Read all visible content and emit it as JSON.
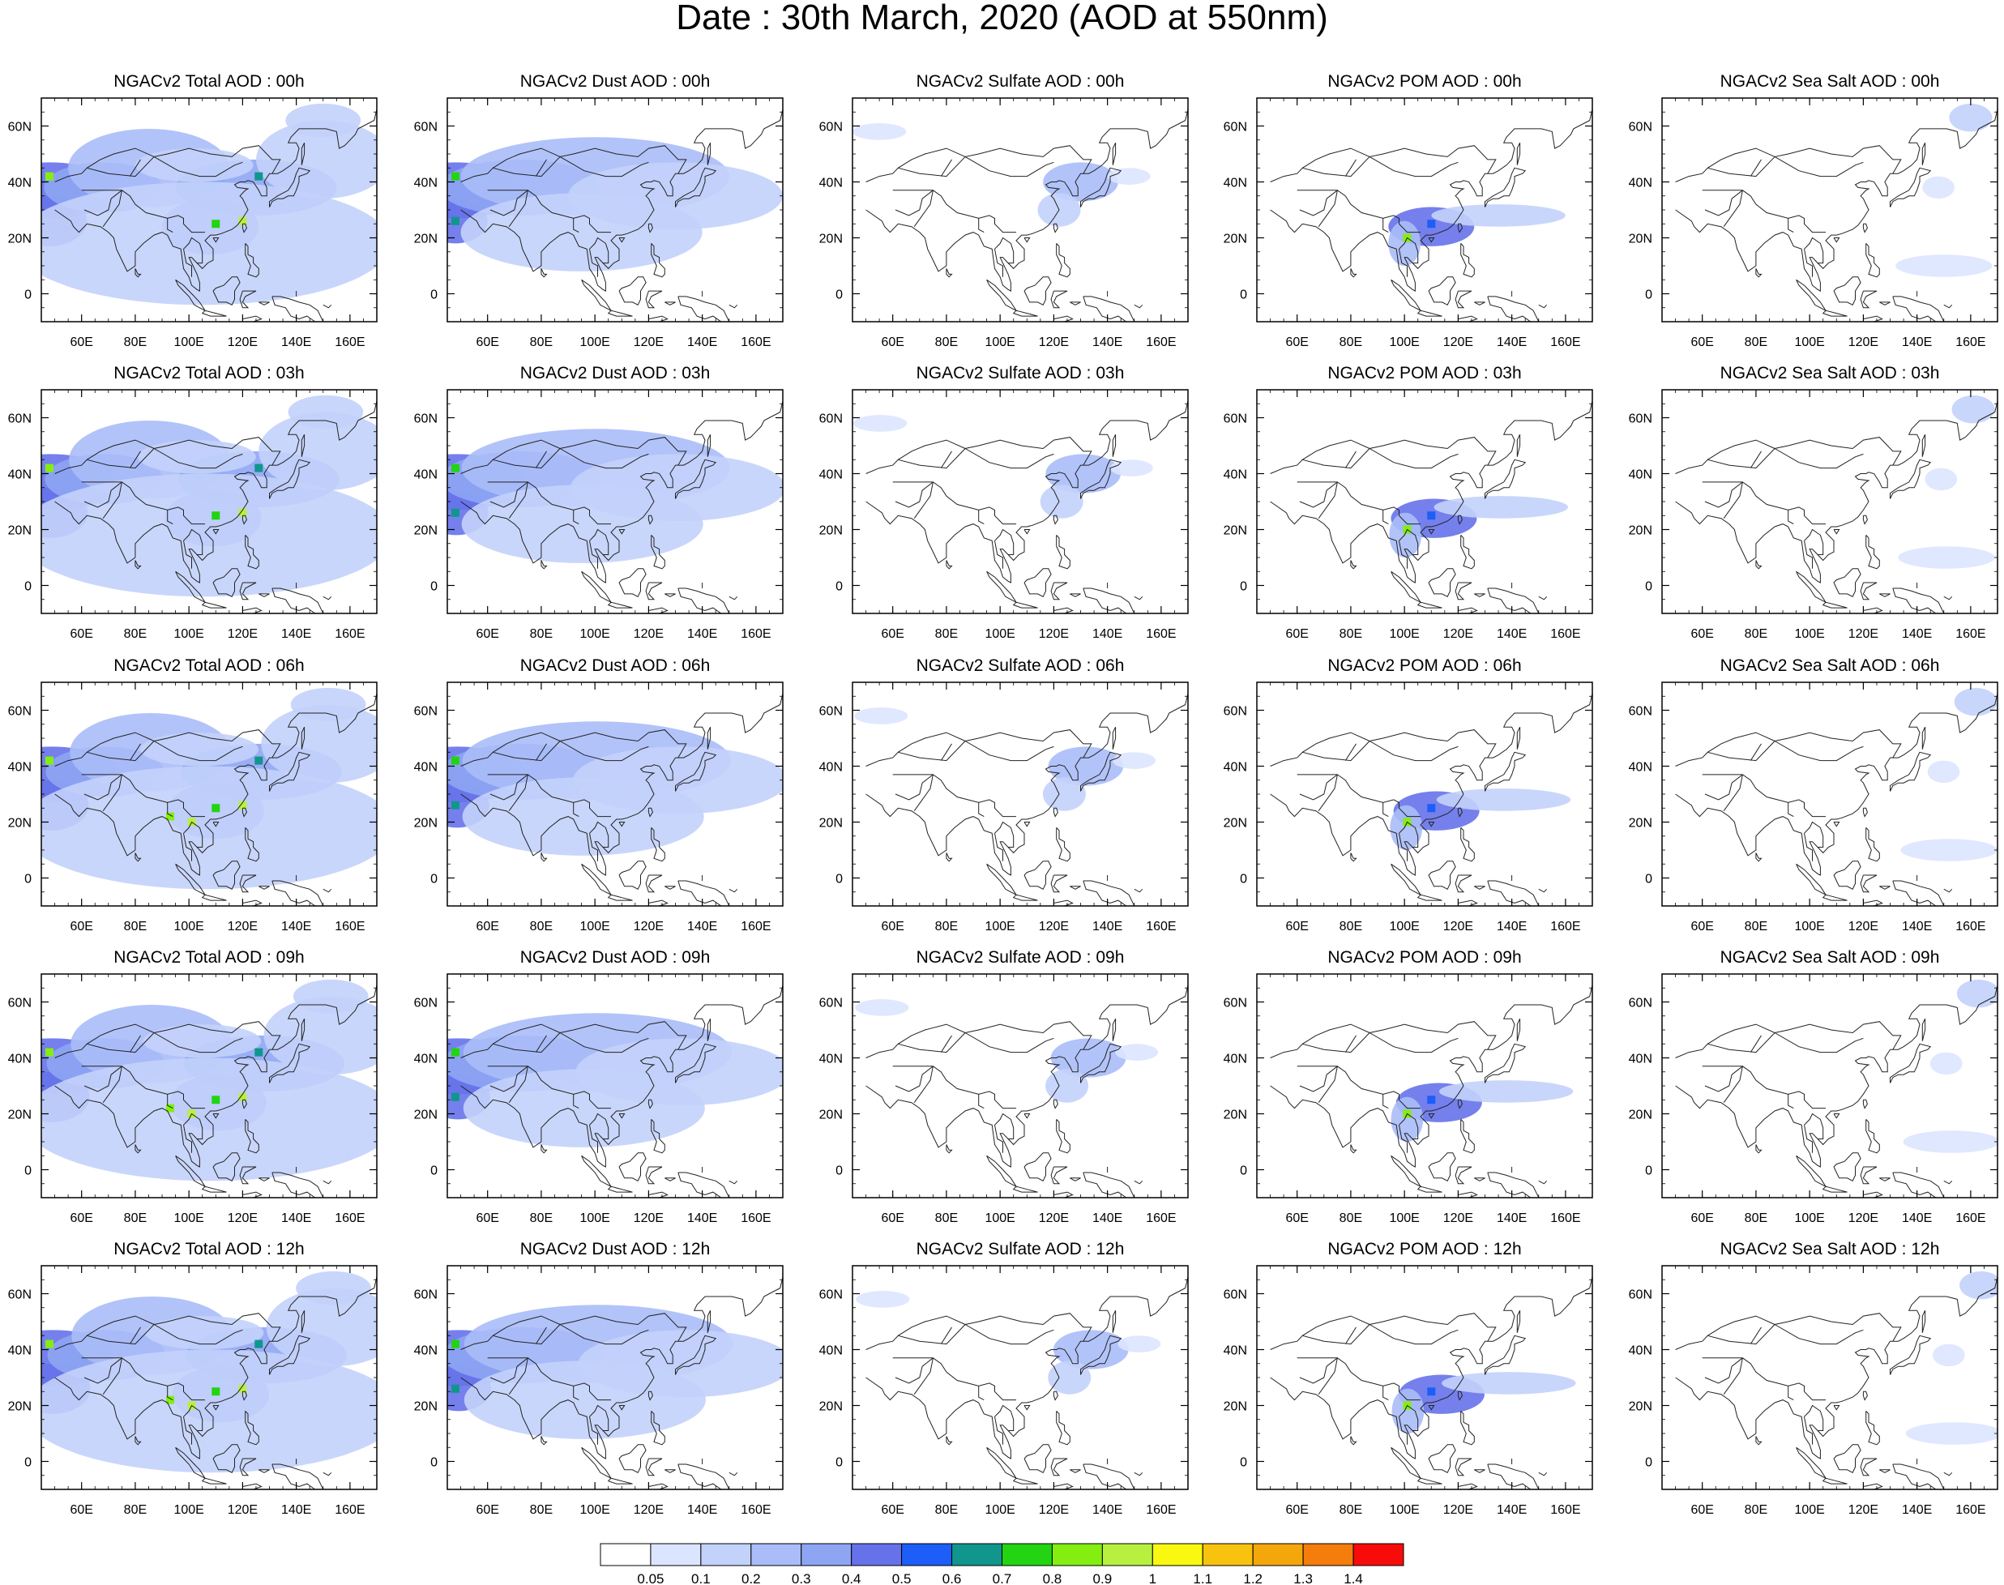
{
  "title": "Date : 30th March, 2020 (AOD at 550nm)",
  "axes": {
    "lon_ticks": [
      60,
      80,
      100,
      120,
      140,
      160
    ],
    "lon_labels": [
      "60E",
      "80E",
      "100E",
      "120E",
      "140E",
      "160E"
    ],
    "lat_ticks": [
      0,
      20,
      40,
      60
    ],
    "lat_labels": [
      "0",
      "20N",
      "40N",
      "60N"
    ],
    "lon_range": [
      45,
      170
    ],
    "lat_range": [
      -10,
      70
    ]
  },
  "colorbar": {
    "labels": [
      "0.05",
      "0.1",
      "0.2",
      "0.3",
      "0.4",
      "0.5",
      "0.6",
      "0.7",
      "0.8",
      "0.9",
      "1",
      "1.1",
      "1.2",
      "1.3",
      "1.4"
    ],
    "colors": [
      "#ffffff",
      "#dce5ff",
      "#c3d2fb",
      "#aabdf8",
      "#8ea5f4",
      "#6672ea",
      "#1c5ef7",
      "#10968d",
      "#22d411",
      "#84ee10",
      "#b8f040",
      "#f8f810",
      "#f7c30f",
      "#f4a70b",
      "#f57d0b",
      "#f80c0a"
    ]
  },
  "rows": [
    "00h",
    "03h",
    "06h",
    "09h",
    "12h"
  ],
  "columns": [
    "Total",
    "Dust",
    "Sulfate",
    "POM",
    "Sea Salt"
  ],
  "chart_data": {
    "type": "heatmap",
    "title": "Date : 30th March, 2020 (AOD at 550nm)",
    "panels": [
      [
        "NGACv2 Total AOD : 00h",
        "NGACv2 Dust AOD : 00h",
        "NGACv2 Sulfate AOD : 00h",
        "NGACv2 POM AOD : 00h",
        "NGACv2 Sea Salt AOD : 00h"
      ],
      [
        "NGACv2 Total AOD : 03h",
        "NGACv2 Dust AOD : 03h",
        "NGACv2 Sulfate AOD : 03h",
        "NGACv2 POM AOD : 03h",
        "NGACv2 Sea Salt AOD : 03h"
      ],
      [
        "NGACv2 Total AOD : 06h",
        "NGACv2 Dust AOD : 06h",
        "NGACv2 Sulfate AOD : 06h",
        "NGACv2 POM AOD : 06h",
        "NGACv2 Sea Salt AOD : 06h"
      ],
      [
        "NGACv2 Total AOD : 09h",
        "NGACv2 Dust AOD : 09h",
        "NGACv2 Sulfate AOD : 09h",
        "NGACv2 POM AOD : 09h",
        "NGACv2 Sea Salt  AOD : 09h"
      ],
      [
        "NGACv2 Total AOD  : 12h",
        "NGACv2 Dust AOD : 12h",
        "NGACv2 Sulfate AOD : 12h",
        "NGACv2 POM  AOD : 12h",
        "NGACv2 Sea Salt  AOD : 12h"
      ]
    ],
    "plumes": {
      "Total": [
        {
          "lon": 48,
          "lat": 37,
          "rlon": 26,
          "rlat": 10,
          "v": 0.42
        },
        {
          "lon": 48,
          "lat": 26,
          "rlon": 14,
          "rlat": 9,
          "v": 0.4
        },
        {
          "lon": 68,
          "lat": 38,
          "rlon": 22,
          "rlat": 9,
          "v": 0.3
        },
        {
          "lon": 85,
          "lat": 45,
          "rlon": 30,
          "rlat": 14,
          "v": 0.22
        },
        {
          "lon": 108,
          "lat": 24,
          "rlon": 18,
          "rlat": 10,
          "v": 0.35
        },
        {
          "lon": 125,
          "lat": 38,
          "rlon": 30,
          "rlat": 10,
          "v": 0.3
        },
        {
          "lon": 105,
          "lat": 18,
          "rlon": 70,
          "rlat": 22,
          "v": 0.12
        },
        {
          "lon": 150,
          "lat": 48,
          "rlon": 25,
          "rlat": 14,
          "v": 0.12
        },
        {
          "lon": 150,
          "lat": 62,
          "rlon": 14,
          "rlat": 6,
          "v": 0.18
        },
        {
          "lon": 102,
          "lat": 46,
          "rlon": 22,
          "rlat": 6,
          "v": 0.18
        }
      ],
      "Dust": [
        {
          "lon": 48,
          "lat": 37,
          "rlon": 26,
          "rlat": 10,
          "v": 0.42
        },
        {
          "lon": 48,
          "lat": 26,
          "rlon": 12,
          "rlat": 8,
          "v": 0.4
        },
        {
          "lon": 72,
          "lat": 38,
          "rlon": 30,
          "rlat": 10,
          "v": 0.3
        },
        {
          "lon": 100,
          "lat": 42,
          "rlon": 50,
          "rlat": 14,
          "v": 0.2
        },
        {
          "lon": 130,
          "lat": 35,
          "rlon": 40,
          "rlat": 12,
          "v": 0.12
        },
        {
          "lon": 95,
          "lat": 22,
          "rlon": 45,
          "rlat": 14,
          "v": 0.1
        }
      ],
      "Sulfate": [
        {
          "lon": 130,
          "lat": 40,
          "rlon": 14,
          "rlat": 7,
          "v": 0.22
        },
        {
          "lon": 122,
          "lat": 30,
          "rlon": 8,
          "rlat": 6,
          "v": 0.15
        },
        {
          "lon": 55,
          "lat": 58,
          "rlon": 10,
          "rlat": 3,
          "v": 0.08
        },
        {
          "lon": 148,
          "lat": 42,
          "rlon": 8,
          "rlat": 3,
          "v": 0.08
        }
      ],
      "POM": [
        {
          "lon": 110,
          "lat": 24,
          "rlon": 16,
          "rlat": 7,
          "v": 0.42
        },
        {
          "lon": 100,
          "lat": 18,
          "rlon": 6,
          "rlat": 8,
          "v": 0.25
        },
        {
          "lon": 135,
          "lat": 28,
          "rlon": 25,
          "rlat": 4,
          "v": 0.1
        }
      ],
      "Sea Salt": [
        {
          "lon": 160,
          "lat": 63,
          "rlon": 8,
          "rlat": 5,
          "v": 0.15
        },
        {
          "lon": 150,
          "lat": 10,
          "rlon": 18,
          "rlat": 4,
          "v": 0.08
        },
        {
          "lon": 148,
          "lat": 38,
          "rlon": 6,
          "rlat": 4,
          "v": 0.08
        }
      ]
    },
    "hotspots": {
      "Total": [
        {
          "lon": 48,
          "lat": 42,
          "v": 0.8
        },
        {
          "lon": 110,
          "lat": 25,
          "v": 0.75
        },
        {
          "lon": 120,
          "lat": 26,
          "v": 0.9
        },
        {
          "lon": 126,
          "lat": 42,
          "v": 0.65
        },
        {
          "lon": 93,
          "lat": 22,
          "v": 0.8
        },
        {
          "lon": 101,
          "lat": 20,
          "v": 0.95
        }
      ],
      "Dust": [
        {
          "lon": 48,
          "lat": 42,
          "v": 0.75
        },
        {
          "lon": 48,
          "lat": 26,
          "v": 0.6
        }
      ],
      "POM": [
        {
          "lon": 110,
          "lat": 25,
          "v": 0.55
        },
        {
          "lon": 101,
          "lat": 20,
          "v": 0.8
        }
      ]
    },
    "xlabel": "",
    "ylabel": ""
  }
}
